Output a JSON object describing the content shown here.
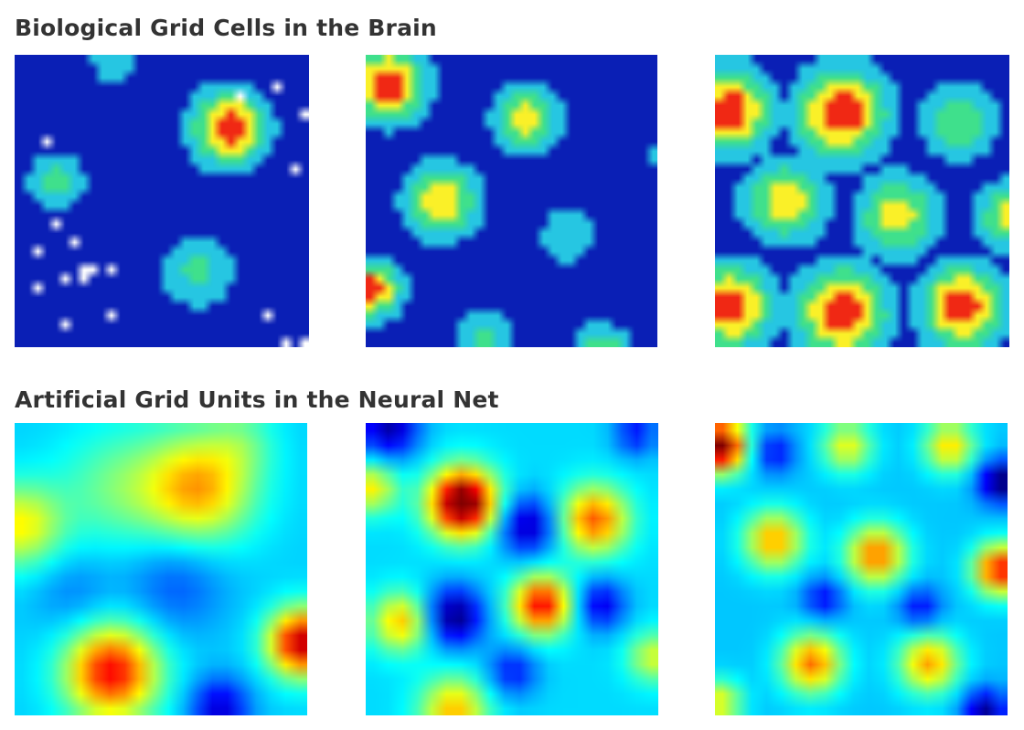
{
  "biological": {
    "title": "Biological Grid Cells in the Brain",
    "panel_count": 3
  },
  "artificial": {
    "title": "Artificial Grid Units in the Neural Net",
    "panel_count": 3
  },
  "colormap": {
    "name": "jet",
    "low": "#00008b",
    "mid_low": "#0080ff",
    "mid": "#40ffc0",
    "mid_high": "#ffe000",
    "high": "#ff2000",
    "top": "#8b0000",
    "background": "#0a1fb5",
    "spike_color": "#ffffff"
  }
}
